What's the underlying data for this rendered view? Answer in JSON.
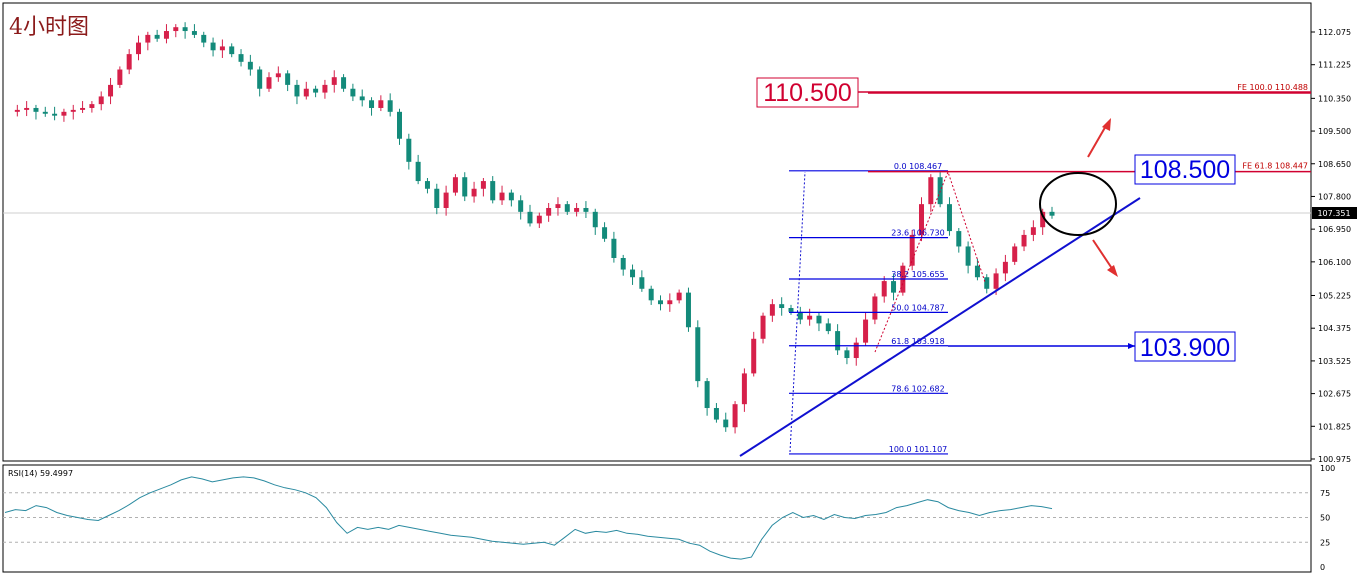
{
  "title": "4小时图",
  "colors": {
    "bull": "#d6204a",
    "bear": "#138a7a",
    "fib": "#0000e0",
    "fe": "#d00030",
    "trend": "#1010d0",
    "rsi": "#2a8aa0",
    "grid": "#d8d8d8"
  },
  "price_axis": {
    "ticks": [
      "112.075",
      "111.225",
      "110.350",
      "109.500",
      "108.650",
      "107.800",
      "106.950",
      "106.100",
      "105.225",
      "104.375",
      "103.525",
      "102.675",
      "101.825",
      "100.975"
    ],
    "current_price": "107.351"
  },
  "rsi_panel": {
    "label": "RSI(14) 59.4997",
    "ticks": [
      "100",
      "75",
      "50",
      "25",
      "0"
    ],
    "levels": [
      75,
      50,
      25
    ]
  },
  "fib_levels": [
    {
      "ratio": "0.0",
      "price": "108.467"
    },
    {
      "ratio": "23.6",
      "price": "106.730"
    },
    {
      "ratio": "38.2",
      "price": "105.655"
    },
    {
      "ratio": "50.0",
      "price": "104.787"
    },
    {
      "ratio": "61.8",
      "price": "103.918"
    },
    {
      "ratio": "78.6",
      "price": "102.682"
    },
    {
      "ratio": "100.0",
      "price": "101.107"
    }
  ],
  "fe_levels": [
    {
      "label": "FE 100.0",
      "price": "110.488"
    },
    {
      "label": "FE 61.8",
      "price": "108.447"
    }
  ],
  "annotations": {
    "resistance_high": "110.500",
    "resistance": "108.500",
    "support": "103.900"
  },
  "chart_data": {
    "type": "candlestick",
    "title": "4小时图",
    "ylim": [
      100.8,
      112.5
    ],
    "rsi_series": [
      55,
      58,
      57,
      62,
      60,
      55,
      52,
      50,
      48,
      47,
      52,
      57,
      63,
      70,
      75,
      79,
      83,
      88,
      91,
      89,
      86,
      88,
      90,
      91,
      90,
      87,
      83,
      80,
      78,
      75,
      70,
      60,
      45,
      34,
      40,
      38,
      40,
      38,
      42,
      40,
      38,
      36,
      34,
      32,
      31,
      30,
      28,
      26,
      25,
      24,
      23,
      24,
      25,
      22,
      30,
      38,
      34,
      36,
      35,
      37,
      34,
      33,
      31,
      30,
      29,
      28,
      24,
      22,
      16,
      12,
      9,
      8,
      10,
      28,
      42,
      50,
      55,
      50,
      52,
      48,
      53,
      50,
      49,
      52,
      53,
      55,
      60,
      62,
      65,
      68,
      66,
      60,
      57,
      55,
      52,
      55,
      57,
      58,
      60,
      62,
      61,
      59
    ]
  }
}
